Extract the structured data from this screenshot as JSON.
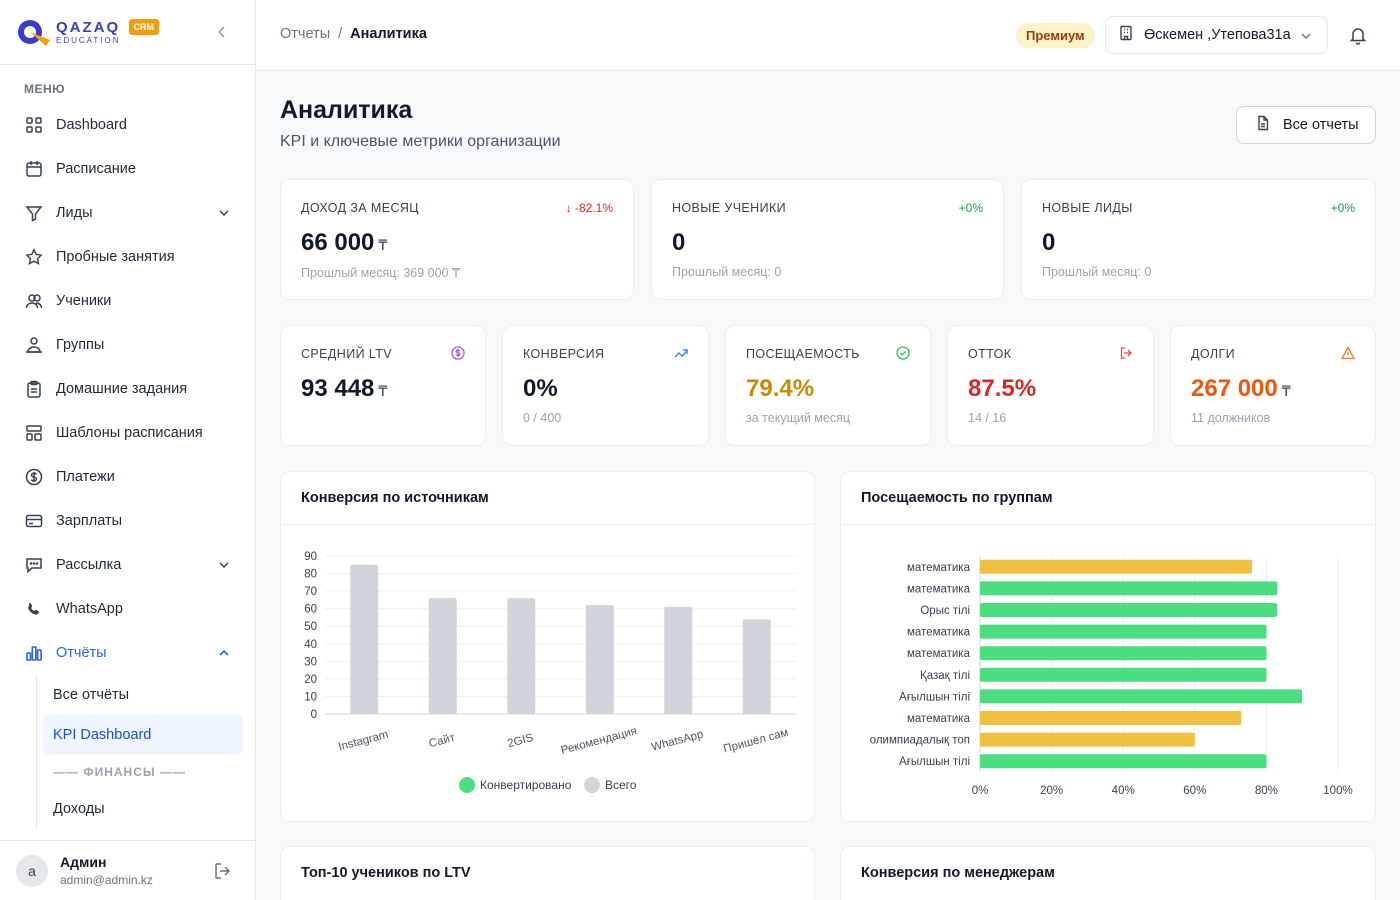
{
  "brand": {
    "line1": "QAZAQ",
    "line2": "EDUCATION",
    "badge": "CRM"
  },
  "menu_title": "МЕНЮ",
  "nav": [
    {
      "label": "Dashboard",
      "icon": "dashboard-icon"
    },
    {
      "label": "Расписание",
      "icon": "calendar-icon"
    },
    {
      "label": "Лиды",
      "icon": "funnel-icon",
      "expand": "down"
    },
    {
      "label": "Пробные занятия",
      "icon": "star-icon"
    },
    {
      "label": "Ученики",
      "icon": "users-icon"
    },
    {
      "label": "Группы",
      "icon": "group-icon"
    },
    {
      "label": "Домашние задания",
      "icon": "clipboard-icon"
    },
    {
      "label": "Шаблоны расписания",
      "icon": "template-icon"
    },
    {
      "label": "Платежи",
      "icon": "dollar-icon"
    },
    {
      "label": "Зарплаты",
      "icon": "card-icon"
    },
    {
      "label": "Рассылка",
      "icon": "message-icon",
      "expand": "down"
    },
    {
      "label": "WhatsApp",
      "icon": "phone-icon"
    },
    {
      "label": "Отчёты",
      "icon": "bar-chart-icon",
      "expand": "up",
      "active": true
    }
  ],
  "reports_sub": {
    "all": "Все отчёты",
    "kpi": "KPI Dashboard",
    "finance_sep": "—— ФИНАНСЫ ——",
    "income": "Доходы"
  },
  "user": {
    "initial": "a",
    "name": "Админ",
    "email": "admin@admin.kz"
  },
  "breadcrumb": {
    "parent": "Отчеты",
    "sep": "/",
    "current": "Аналитика"
  },
  "premium_badge": "Премиум",
  "branch": "Өскемен ,Утепова31а",
  "page": {
    "title": "Аналитика",
    "subtitle": "KPI и ключевые метрики организации",
    "all_reports": "Все отчеты"
  },
  "kpi_top": [
    {
      "label": "ДОХОД ЗА МЕСЯЦ",
      "delta": "-82.1%",
      "delta_dir": "down",
      "value": "66 000",
      "currency": "₸",
      "sub": "Прошлый месяц: 369 000 ₸"
    },
    {
      "label": "НОВЫЕ УЧЕНИКИ",
      "delta": "+0%",
      "value": "0",
      "sub": "Прошлый месяц: 0"
    },
    {
      "label": "НОВЫЕ ЛИДЫ",
      "delta": "+0%",
      "value": "0",
      "sub": "Прошлый месяц: 0"
    }
  ],
  "kpi_small": [
    {
      "label": "СРЕДНИЙ LTV",
      "value": "93 448",
      "currency": "₸",
      "sub": "",
      "color": "#111827",
      "icon": "dollar-circle-icon",
      "icon_color": "#a855f7"
    },
    {
      "label": "КОНВЕРСИЯ",
      "value": "0%",
      "sub": "0 / 400",
      "color": "#111827",
      "icon": "trend-up-icon",
      "icon_color": "#3b82f6"
    },
    {
      "label": "ПОСЕЩАЕМОСТЬ",
      "value": "79.4%",
      "sub": "за текущий месяц",
      "color": "#ca8a04",
      "icon": "check-circle-icon",
      "icon_color": "#22c55e"
    },
    {
      "label": "ОТТОК",
      "value": "87.5%",
      "sub": "14 / 16",
      "color": "#dc2626",
      "icon": "exit-icon",
      "icon_color": "#ef4444"
    },
    {
      "label": "ДОЛГИ",
      "value": "267 000",
      "currency": "₸",
      "sub": "11 должников",
      "color": "#ea580c",
      "icon": "warning-icon",
      "icon_color": "#f97316"
    }
  ],
  "panels": {
    "sources": "Конверсия по источникам",
    "attendance": "Посещаемость по группам",
    "top_ltv": "Топ-10 учеников по LTV",
    "managers": "Конверсия по менеджерам"
  },
  "chart_data": [
    {
      "type": "bar",
      "title": "Конверсия по источникам",
      "categories": [
        "Instagram",
        "Сайт",
        "2GIS",
        "Рекомендация",
        "WhatsApp",
        "Пришёл сам"
      ],
      "series": [
        {
          "name": "Конвертировано",
          "values": [
            0,
            0,
            0,
            0,
            0,
            0
          ],
          "color": "#4ade80"
        },
        {
          "name": "Всего",
          "values": [
            85,
            66,
            66,
            62,
            61,
            54
          ],
          "color": "#d1d5db"
        }
      ],
      "y_ticks": [
        0,
        10,
        20,
        30,
        40,
        50,
        60,
        70,
        80,
        90
      ],
      "ylim": [
        0,
        90
      ],
      "legend": "bottom"
    },
    {
      "type": "bar",
      "orientation": "horizontal",
      "title": "Посещаемость по группам",
      "categories": [
        "математика",
        "математика",
        "Орыс тілі",
        "математика",
        "математика",
        "Қазақ тілі",
        "Ағылшын тілі",
        "математика",
        "олимпиадалық топ",
        "Ағылшын тілі"
      ],
      "values": [
        76,
        83,
        83,
        80,
        80,
        80,
        90,
        73,
        60,
        80
      ],
      "colors": [
        "#f0c040",
        "#4ade80",
        "#4ade80",
        "#4ade80",
        "#4ade80",
        "#4ade80",
        "#4ade80",
        "#f0c040",
        "#f0c040",
        "#4ade80"
      ],
      "x_ticks": [
        "0%",
        "20%",
        "40%",
        "60%",
        "80%",
        "100%"
      ],
      "xlim": [
        0,
        100
      ]
    }
  ]
}
